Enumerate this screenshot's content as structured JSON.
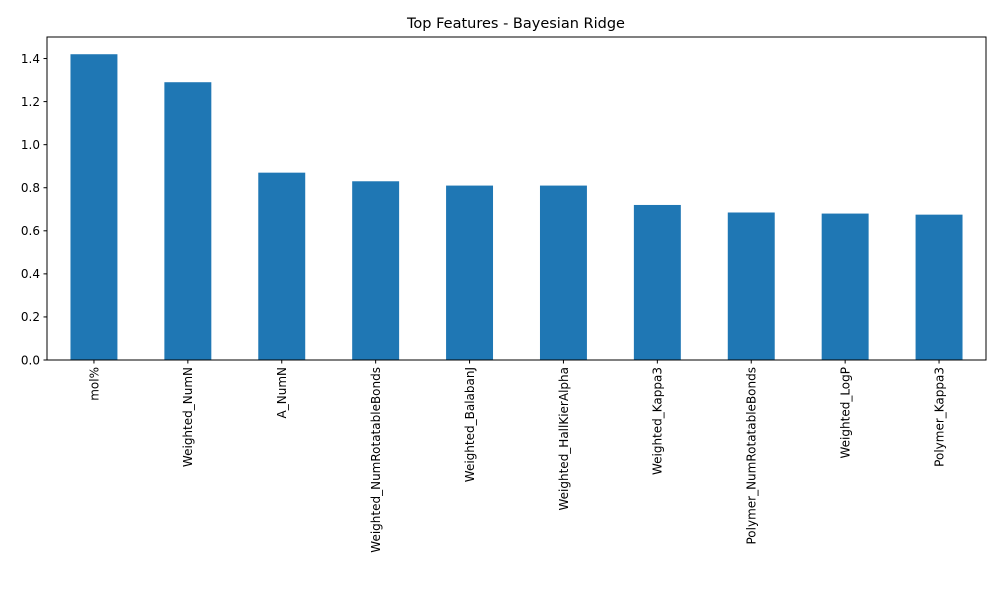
{
  "chart_data": {
    "type": "bar",
    "title": "Top Features - Bayesian Ridge",
    "xlabel": "",
    "ylabel": "",
    "categories": [
      "mol%",
      "Weighted_NumN",
      "A_NumN",
      "Weighted_NumRotatableBonds",
      "Weighted_BalabanJ",
      "Weighted_HallKierAlpha",
      "Weighted_Kappa3",
      "Polymer_NumRotatableBonds",
      "Weighted_LogP",
      "Polymer_Kappa3"
    ],
    "values": [
      1.42,
      1.29,
      0.87,
      0.83,
      0.81,
      0.81,
      0.72,
      0.685,
      0.68,
      0.675
    ],
    "ylim": [
      0,
      1.5
    ],
    "yticks": [
      "0.0",
      "0.2",
      "0.4",
      "0.6",
      "0.8",
      "1.0",
      "1.2",
      "1.4"
    ],
    "grid": false,
    "bar_color": "#1f77b4"
  }
}
